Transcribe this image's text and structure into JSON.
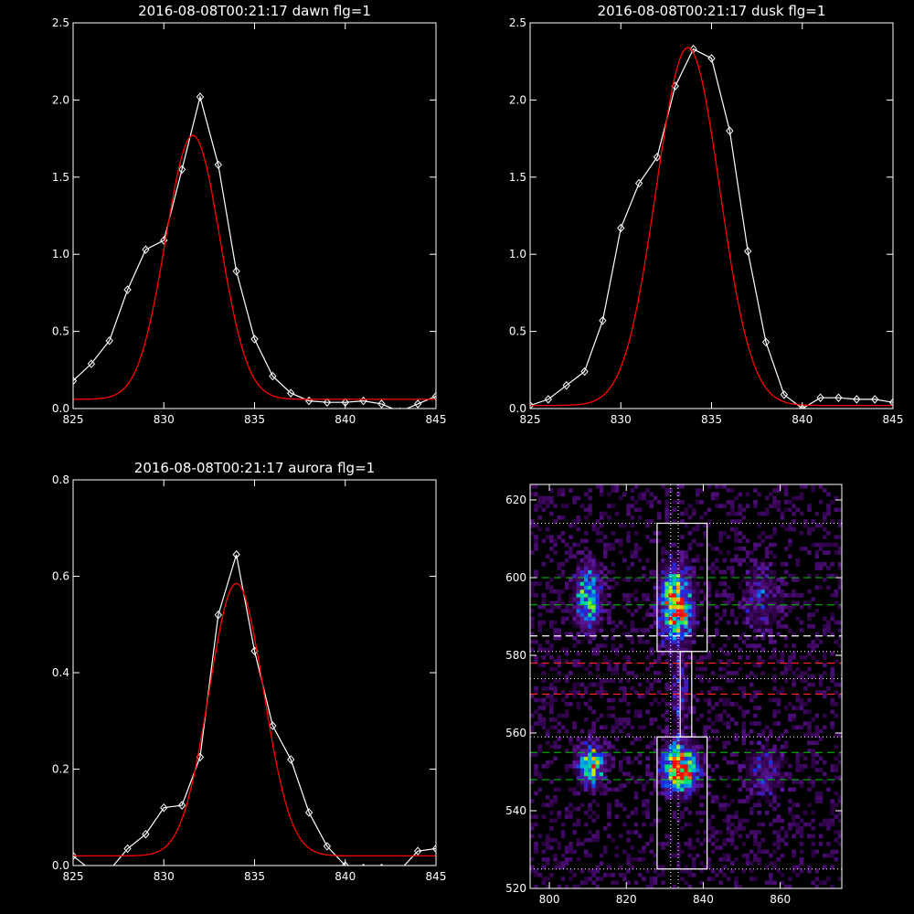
{
  "colors": {
    "background": "#000000",
    "axes": "#ffffff",
    "data": "#ffffff",
    "fit": "#ff0000",
    "guide_green": "#00c800",
    "guide_red": "#ff2020"
  },
  "chart_data": [
    {
      "type": "line",
      "title": "2016-08-08T00:21:17 dawn flg=1",
      "xlim": [
        825,
        845
      ],
      "ylim": [
        0,
        2.5
      ],
      "xticks": [
        825,
        830,
        835,
        840,
        845
      ],
      "yticks": [
        0.0,
        0.5,
        1.0,
        1.5,
        2.0,
        2.5
      ],
      "ytick_labels": [
        "0.0",
        "0.5",
        "1.0",
        "1.5",
        "2.0",
        "2.5"
      ],
      "series": [
        {
          "x": [
            825,
            826,
            827,
            828,
            829,
            830,
            831,
            832,
            833,
            834,
            835,
            836,
            837,
            838,
            839,
            840,
            841,
            842,
            843,
            844,
            845
          ],
          "values": [
            0.18,
            0.29,
            0.44,
            0.77,
            1.03,
            1.09,
            1.55,
            2.02,
            1.58,
            0.89,
            0.45,
            0.21,
            0.1,
            0.05,
            0.04,
            0.04,
            0.05,
            0.03,
            -0.02,
            0.03,
            0.08
          ],
          "marker": "diamond"
        },
        {
          "gaussian": {
            "amp": 1.71,
            "center": 831.6,
            "sigma": 1.5,
            "offset": 0.06
          }
        }
      ]
    },
    {
      "type": "line",
      "title": "2016-08-08T00:21:17 dusk flg=1",
      "xlim": [
        825,
        845
      ],
      "ylim": [
        0,
        2.5
      ],
      "xticks": [
        825,
        830,
        835,
        840,
        845
      ],
      "yticks": [
        0.0,
        0.5,
        1.0,
        1.5,
        2.0,
        2.5
      ],
      "ytick_labels": [
        "0.0",
        "0.5",
        "1.0",
        "1.5",
        "2.0",
        "2.5"
      ],
      "series": [
        {
          "x": [
            825,
            826,
            827,
            828,
            829,
            830,
            831,
            832,
            833,
            834,
            835,
            836,
            837,
            838,
            839,
            840,
            841,
            842,
            843,
            844,
            845
          ],
          "values": [
            0.02,
            0.06,
            0.15,
            0.24,
            0.57,
            1.17,
            1.46,
            1.63,
            2.09,
            2.33,
            2.27,
            1.8,
            1.02,
            0.43,
            0.09,
            0.0,
            0.07,
            0.07,
            0.06,
            0.06,
            0.04
          ],
          "marker": "diamond"
        },
        {
          "gaussian": {
            "amp": 2.32,
            "center": 833.7,
            "sigma": 1.75,
            "offset": 0.02
          }
        }
      ]
    },
    {
      "type": "line",
      "title": "2016-08-08T00:21:17 aurora flg=1",
      "xlim": [
        825,
        845
      ],
      "ylim": [
        0,
        0.8
      ],
      "xticks": [
        825,
        830,
        835,
        840,
        845
      ],
      "yticks": [
        0.0,
        0.2,
        0.4,
        0.6,
        0.8
      ],
      "ytick_labels": [
        "0.0",
        "0.2",
        "0.4",
        "0.6",
        "0.8"
      ],
      "series": [
        {
          "x": [
            825,
            826,
            827,
            828,
            829,
            830,
            831,
            832,
            833,
            834,
            835,
            836,
            837,
            838,
            839,
            840,
            841,
            842,
            843,
            844,
            845
          ],
          "values": [
            0.02,
            -0.01,
            -0.01,
            0.035,
            0.065,
            0.12,
            0.125,
            0.225,
            0.52,
            0.645,
            0.445,
            0.29,
            0.22,
            0.11,
            0.04,
            0.0,
            -0.005,
            -0.005,
            -0.01,
            0.03,
            0.035
          ],
          "marker": "diamond"
        },
        {
          "gaussian": {
            "amp": 0.565,
            "center": 834.0,
            "sigma": 1.5,
            "offset": 0.02
          }
        }
      ]
    },
    {
      "type": "heatmap",
      "xlim": [
        795,
        876
      ],
      "ylim": [
        520,
        624
      ],
      "xticks": [
        800,
        820,
        840,
        860
      ],
      "yticks": [
        520,
        540,
        560,
        580,
        600,
        620
      ],
      "blobs": [
        {
          "x": 810,
          "y": 595,
          "sx": 2.5,
          "sy": 5.5,
          "amp": 0.55
        },
        {
          "x": 811,
          "y": 552,
          "sx": 2.2,
          "sy": 3.5,
          "amp": 0.8
        },
        {
          "x": 833,
          "y": 593,
          "sx": 2.8,
          "sy": 6.5,
          "amp": 0.85
        },
        {
          "x": 834,
          "y": 551,
          "sx": 3.0,
          "sy": 4.0,
          "amp": 1.0
        },
        {
          "x": 834,
          "y": 570,
          "sx": 1.5,
          "sy": 7.0,
          "amp": 0.25
        },
        {
          "x": 855,
          "y": 595,
          "sx": 3.5,
          "sy": 6.0,
          "amp": 0.25
        },
        {
          "x": 856,
          "y": 550,
          "sx": 3.5,
          "sy": 5.0,
          "amp": 0.25
        }
      ],
      "boxes": [
        {
          "x": [
            828,
            841
          ],
          "y": [
            581,
            614
          ]
        },
        {
          "x": [
            834,
            837
          ],
          "y": [
            559,
            581
          ]
        },
        {
          "x": [
            828,
            841
          ],
          "y": [
            525,
            559
          ]
        }
      ],
      "hlines_dotted_white": [
        614,
        581,
        574,
        559,
        525
      ],
      "vlines_dotted_white": [
        831.5,
        833.5
      ],
      "hlines_dashed_green": [
        600,
        593,
        555,
        548
      ],
      "hlines_dashed_white": [
        585
      ],
      "hlines_dashed_red": [
        578,
        570
      ]
    }
  ]
}
